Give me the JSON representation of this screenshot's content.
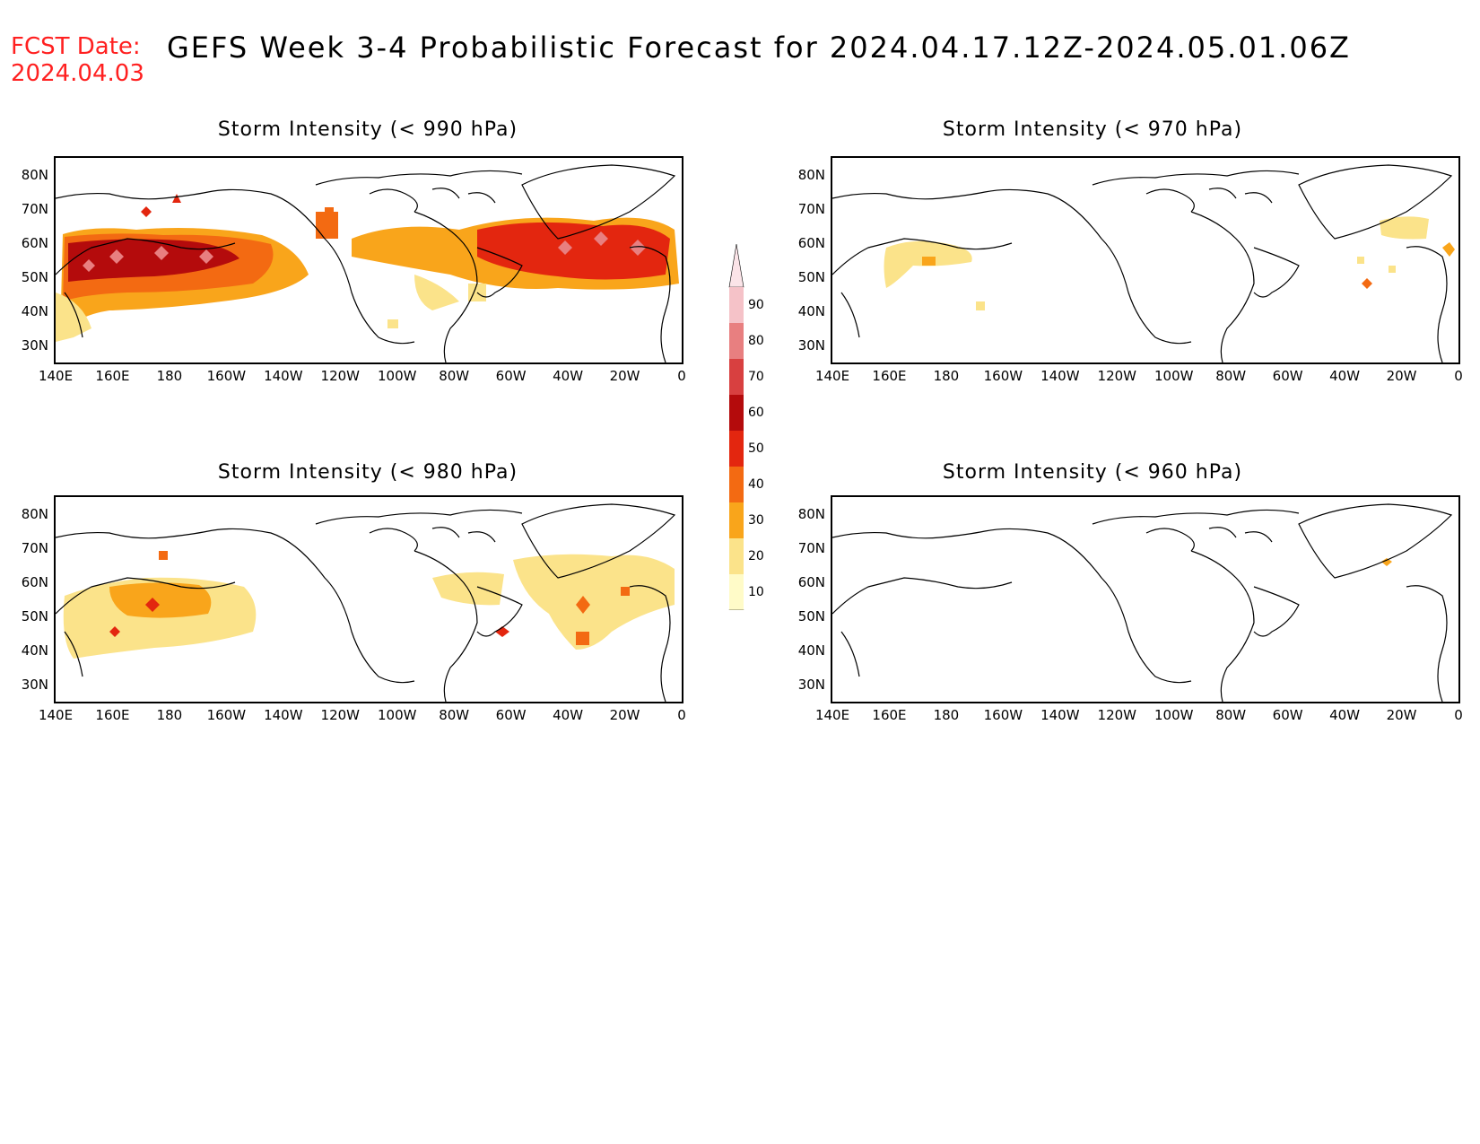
{
  "header": {
    "fcst_label": "FCST Date:",
    "fcst_date": "2024.04.03",
    "title": "GEFS Week 3-4 Probabilistic Forecast for 2024.04.17.12Z-2024.05.01.06Z"
  },
  "lon_ticks": [
    "140E",
    "160E",
    "180",
    "160W",
    "140W",
    "120W",
    "100W",
    "80W",
    "60W",
    "40W",
    "20W",
    "0"
  ],
  "lat_ticks": [
    "80N",
    "70N",
    "60N",
    "50N",
    "40N",
    "30N"
  ],
  "panels": [
    {
      "id": "p990",
      "title": "Storm Intensity (< 990 hPa)"
    },
    {
      "id": "p970",
      "title": "Storm Intensity (< 970 hPa)"
    },
    {
      "id": "p980",
      "title": "Storm Intensity (< 980 hPa)"
    },
    {
      "id": "p960",
      "title": "Storm Intensity (< 960 hPa)"
    }
  ],
  "colorbar": {
    "levels": [
      "10",
      "20",
      "30",
      "40",
      "50",
      "60",
      "70",
      "80",
      "90"
    ],
    "colors": [
      "#fffbc8",
      "#fbe38a",
      "#f9a51b",
      "#f36a12",
      "#e3260f",
      "#b40b0c",
      "#d84040",
      "#e87f80",
      "#f5c2c8"
    ]
  }
}
